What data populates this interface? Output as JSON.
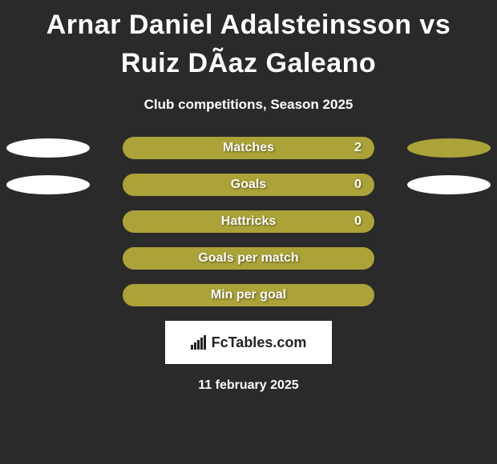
{
  "title": "Arnar Daniel Adalsteinsson vs Ruiz DÃ­az Galeano",
  "subtitle": "Club competitions, Season 2025",
  "date": "11 february 2025",
  "brand": "FcTables.com",
  "colors": {
    "background": "#2a2a2a",
    "olive": "#aba238",
    "white": "#ffffff",
    "text": "#ffffff"
  },
  "stats": [
    {
      "label": "Matches",
      "value": "2",
      "bar_color": "#aba238",
      "left_ellipse_color": "#ffffff",
      "right_ellipse_color": "#aba238",
      "show_left": true,
      "show_right": true,
      "show_value": true
    },
    {
      "label": "Goals",
      "value": "0",
      "bar_color": "#aba238",
      "left_ellipse_color": "#ffffff",
      "right_ellipse_color": "#ffffff",
      "show_left": true,
      "show_right": true,
      "show_value": true
    },
    {
      "label": "Hattricks",
      "value": "0",
      "bar_color": "#aba238",
      "left_ellipse_color": null,
      "right_ellipse_color": null,
      "show_left": false,
      "show_right": false,
      "show_value": true
    },
    {
      "label": "Goals per match",
      "value": "",
      "bar_color": "#aba238",
      "left_ellipse_color": null,
      "right_ellipse_color": null,
      "show_left": false,
      "show_right": false,
      "show_value": false
    },
    {
      "label": "Min per goal",
      "value": "",
      "bar_color": "#aba238",
      "left_ellipse_color": null,
      "right_ellipse_color": null,
      "show_left": false,
      "show_right": false,
      "show_value": false
    }
  ]
}
